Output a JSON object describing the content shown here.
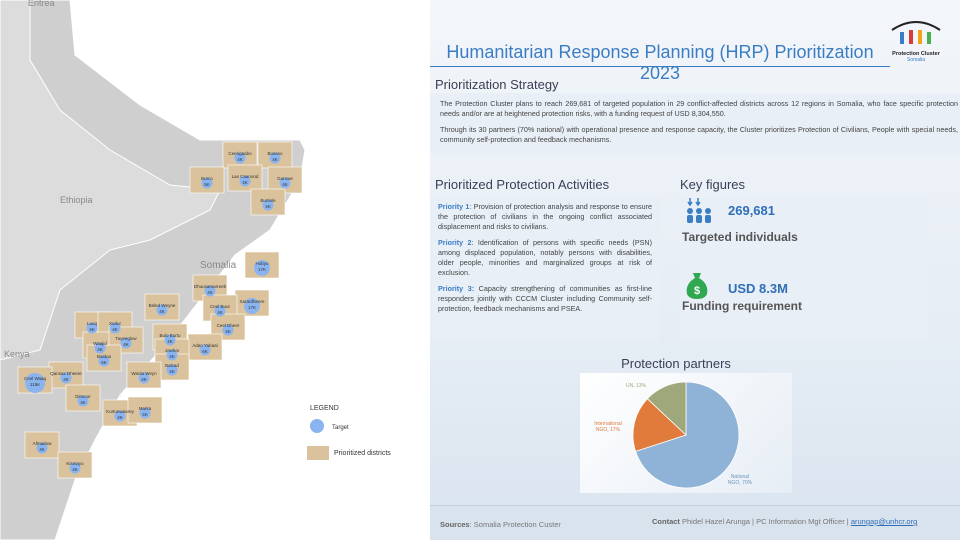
{
  "header": {
    "title": "Humanitarian Response Planning (HRP) Prioritization 2023",
    "logo_text": "Protection Cluster",
    "logo_sub": "Somalia"
  },
  "strategy": {
    "heading": "Prioritization Strategy",
    "p1": "The Protection Cluster plans to reach 269,681 of targeted population in 29 conflict-affected districts across 12 regions in Somalia, who face specific protection needs and/or are at heightened protection risks, with a funding request of USD 8,304,550.",
    "p2": "Through its 30 partners (70% national) with operational presence and response capacity, the Cluster prioritizes Protection of Civilians, People with special needs, community self-protection and feedback mechanisms."
  },
  "activities": {
    "heading": "Prioritized Protection Activities",
    "items": [
      {
        "label": "Priority 1",
        "text": ": Provision of protection analysis and response to ensure the protection of civilians in the ongoing conflict associated displacement and risks to civilians."
      },
      {
        "label": "Priority 2",
        "text": ": Identification of persons with specific needs (PSN) among displaced population, notably persons with disabilities, older people, minorities and marginalized groups at risk of exclusion."
      },
      {
        "label": "Priority 3:",
        "text": " Capacity strengthening of communities as first-line responders jointly with CCCM Cluster including Community self-protection, feedback mechanisms and PSEA."
      }
    ]
  },
  "key_figures": {
    "heading": "Key figures",
    "targeted_value": "269,681",
    "targeted_label": "Targeted individuals",
    "funding_value": "USD 8.3M",
    "funding_label": "Funding requirement",
    "icons": [
      "people-icon",
      "money-bag-icon"
    ]
  },
  "chart_data": {
    "type": "pie",
    "title": "Protection partners",
    "slices": [
      {
        "label": "National NGO, 70%",
        "value": 70,
        "color": "#8fb3d6"
      },
      {
        "label": "International NGO, 17%",
        "value": 17,
        "color": "#e07b3c"
      },
      {
        "label": "UN, 13%",
        "value": 13,
        "color": "#9fa87a"
      }
    ]
  },
  "footer": {
    "sources_label": "Sources",
    "sources": ": Somalia Protection Custer",
    "contact_label": "Contact",
    "contact": " Phidel Hazel Arunga | PC Information Mgt Officer | ",
    "email": "arungap@unhcr.org"
  },
  "map": {
    "countries": [
      "Eritrea",
      "Ethiopia",
      "Somalia",
      "Kenya"
    ],
    "legend_title": "LEGEND",
    "legend_target": "Target",
    "legend_districts": "Prioritized districts",
    "districts": [
      {
        "name": "Ceerigaabo",
        "value": "4K"
      },
      {
        "name": "Bosaso",
        "value": "4K"
      },
      {
        "name": "Burco",
        "value": "5K"
      },
      {
        "name": "Las Caanood",
        "value": "4K"
      },
      {
        "name": "Garowe",
        "value": "4K"
      },
      {
        "name": "Burtinle",
        "value": "4K"
      },
      {
        "name": "Hobyo",
        "value": "17K"
      },
      {
        "name": "Dhuusamarreeb",
        "value": "4K"
      },
      {
        "name": "Xarardheere",
        "value": "17K"
      },
      {
        "name": "Ceel Buur",
        "value": "4K"
      },
      {
        "name": "Beled Weyne",
        "value": "4K"
      },
      {
        "name": "Ceel Dheer",
        "value": "4K"
      },
      {
        "name": "Bulo Burto",
        "value": "4K"
      },
      {
        "name": "Adan Yabaal",
        "value": "6K"
      },
      {
        "name": "Jowhar",
        "value": "4K"
      },
      {
        "name": "Balcad",
        "value": "4K"
      },
      {
        "name": "Luuq",
        "value": "4K"
      },
      {
        "name": "Xudur",
        "value": "4K"
      },
      {
        "name": "Waajid",
        "value": "4K"
      },
      {
        "name": "Tayeeglow",
        "value": "4K"
      },
      {
        "name": "Baidoa",
        "value": "6K"
      },
      {
        "name": "Qansax Dheere",
        "value": "4K"
      },
      {
        "name": "Wanla Weyn",
        "value": "4K"
      },
      {
        "name": "Ceel Waaq",
        "value": "115K"
      },
      {
        "name": "Dinsoor",
        "value": "4K"
      },
      {
        "name": "Kurtunwaarey",
        "value": "4K"
      },
      {
        "name": "Marka",
        "value": "4K"
      },
      {
        "name": "Afmadow",
        "value": "4K"
      },
      {
        "name": "Kismayo",
        "value": "4K"
      }
    ]
  }
}
